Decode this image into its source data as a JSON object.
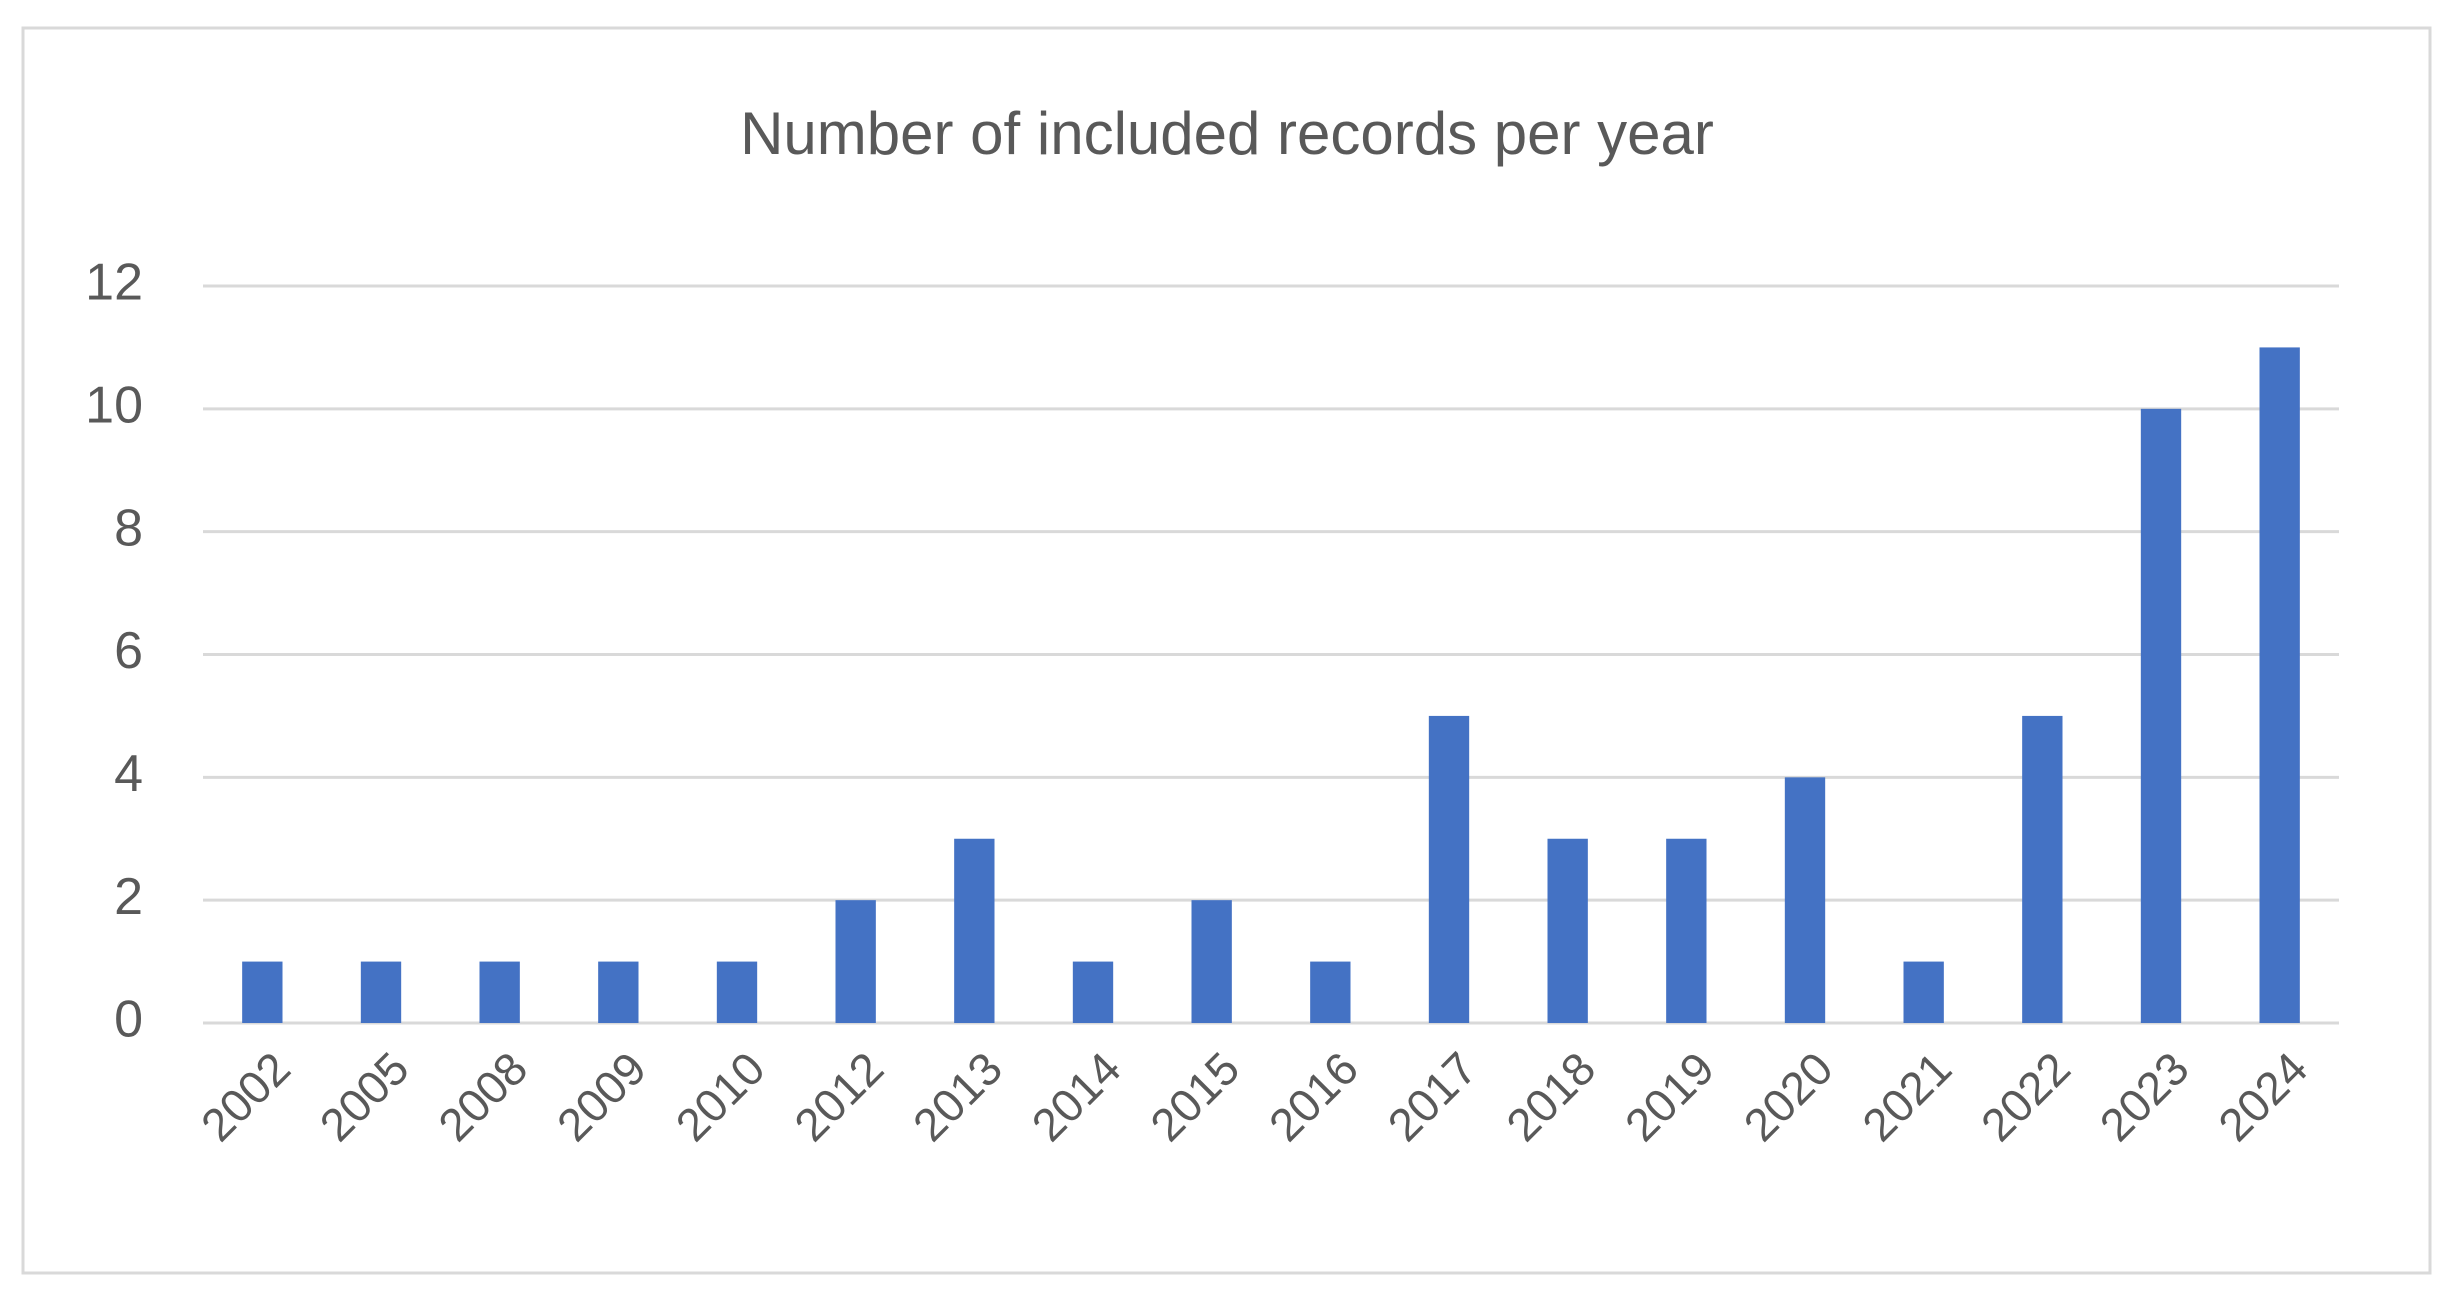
{
  "chart_data": {
    "type": "bar",
    "title": "Number of included records per year",
    "categories": [
      "2002",
      "2005",
      "2008",
      "2009",
      "2010",
      "2012",
      "2013",
      "2014",
      "2015",
      "2016",
      "2017",
      "2018",
      "2019",
      "2020",
      "2021",
      "2022",
      "2023",
      "2024"
    ],
    "values": [
      1,
      1,
      1,
      1,
      1,
      2,
      3,
      1,
      2,
      1,
      5,
      3,
      3,
      4,
      1,
      5,
      10,
      11
    ],
    "color": "#4472c4",
    "ylim": [
      0,
      12
    ],
    "yticks": [
      0,
      2,
      4,
      6,
      8,
      10,
      12
    ],
    "grid": true
  }
}
